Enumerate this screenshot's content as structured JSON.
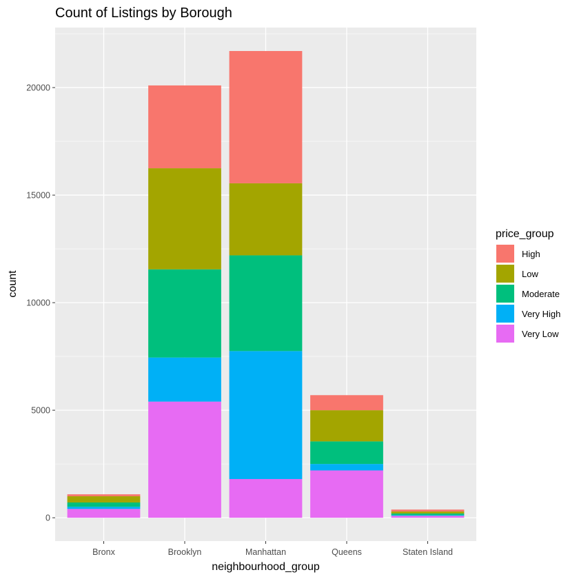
{
  "chart_data": {
    "type": "bar",
    "stacked": true,
    "title": "Count of Listings by Borough",
    "xlabel": "neighbourhood_group",
    "ylabel": "count",
    "categories": [
      "Bronx",
      "Brooklyn",
      "Manhattan",
      "Queens",
      "Staten Island"
    ],
    "ylim": [
      -1085,
      22790
    ],
    "yticks": [
      0,
      5000,
      10000,
      15000,
      20000
    ],
    "grid": true,
    "legend": {
      "title": "price_group",
      "placement": "right"
    },
    "series": [
      {
        "name": "High",
        "color": "#F8766D",
        "values": [
          90,
          3850,
          6150,
          700,
          90
        ]
      },
      {
        "name": "Low",
        "color": "#A3A500",
        "values": [
          290,
          4700,
          3350,
          1450,
          90
        ]
      },
      {
        "name": "Moderate",
        "color": "#00BF7D",
        "values": [
          200,
          4100,
          4450,
          1050,
          80
        ]
      },
      {
        "name": "Very High",
        "color": "#00B0F6",
        "values": [
          100,
          2050,
          5950,
          300,
          30
        ]
      },
      {
        "name": "Very Low",
        "color": "#E76BF3",
        "values": [
          410,
          5400,
          1800,
          2200,
          90
        ]
      }
    ]
  }
}
